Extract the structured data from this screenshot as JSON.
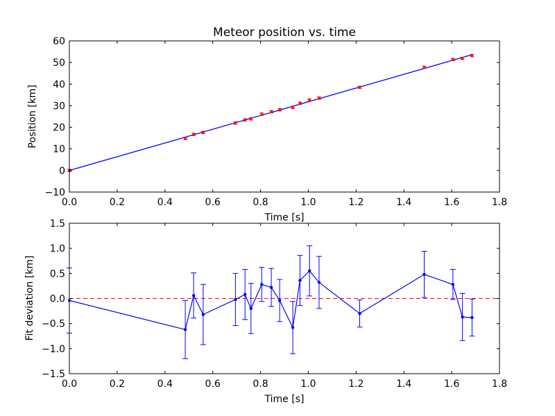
{
  "chart_data": [
    {
      "type": "scatter",
      "title": "Meteor position vs. time",
      "xlabel": "Time [s]",
      "ylabel": "Position [km]",
      "xlim": [
        0.0,
        1.8
      ],
      "ylim": [
        -10,
        60
      ],
      "xticks": [
        "0.0",
        "0.2",
        "0.4",
        "0.6",
        "0.8",
        "1.0",
        "1.2",
        "1.4",
        "1.6",
        "1.8"
      ],
      "yticks": [
        "−10",
        "0",
        "10",
        "20",
        "30",
        "40",
        "50",
        "60"
      ],
      "grid": false,
      "colors": {
        "data": "#ff0000",
        "fit": "#0000ff"
      },
      "series": [
        {
          "kind": "errorbar-points",
          "x": [
            0.0,
            0.485,
            0.52,
            0.56,
            0.695,
            0.735,
            0.76,
            0.805,
            0.845,
            0.88,
            0.935,
            0.965,
            1.005,
            1.045,
            1.215,
            1.485,
            1.605,
            1.645,
            1.685
          ],
          "y": [
            0.0,
            14.8,
            16.7,
            17.6,
            22.0,
            23.4,
            23.9,
            26.1,
            27.2,
            28.1,
            29.2,
            31.1,
            32.6,
            33.5,
            38.5,
            47.8,
            51.4,
            51.9,
            53.2
          ],
          "yerr": 0.55
        },
        {
          "kind": "fit-line",
          "x": [
            0.0,
            1.685
          ],
          "y": [
            0.0,
            53.6
          ]
        }
      ]
    },
    {
      "type": "line",
      "xlabel": "Time [s]",
      "ylabel": "Fit deviation [km]",
      "xlim": [
        0.0,
        1.8
      ],
      "ylim": [
        -1.5,
        1.5
      ],
      "xticks": [
        "0.0",
        "0.2",
        "0.4",
        "0.6",
        "0.8",
        "1.0",
        "1.2",
        "1.4",
        "1.6",
        "1.8"
      ],
      "yticks": [
        "−1.5",
        "−1.0",
        "−0.5",
        "0.0",
        "0.5",
        "1.0",
        "1.5"
      ],
      "grid": false,
      "colors": {
        "series": "#0000ff",
        "zero": "#ff0000"
      },
      "zero_line": {
        "y": 0.0,
        "style": "dashed"
      },
      "series": [
        {
          "kind": "errorbar-line",
          "x": [
            0.0,
            0.485,
            0.52,
            0.56,
            0.695,
            0.735,
            0.76,
            0.805,
            0.845,
            0.88,
            0.935,
            0.965,
            1.005,
            1.045,
            1.215,
            1.485,
            1.605,
            1.645,
            1.685
          ],
          "y": [
            -0.04,
            -0.62,
            0.06,
            -0.32,
            -0.02,
            0.08,
            -0.2,
            0.28,
            0.22,
            -0.04,
            -0.58,
            0.36,
            0.55,
            0.32,
            -0.3,
            0.48,
            0.28,
            -0.37,
            -0.38
          ],
          "yerr": [
            0.65,
            0.58,
            0.45,
            0.6,
            0.52,
            0.5,
            0.5,
            0.34,
            0.38,
            0.42,
            0.52,
            0.5,
            0.5,
            0.52,
            0.27,
            0.46,
            0.3,
            0.47,
            0.37
          ]
        }
      ]
    }
  ]
}
